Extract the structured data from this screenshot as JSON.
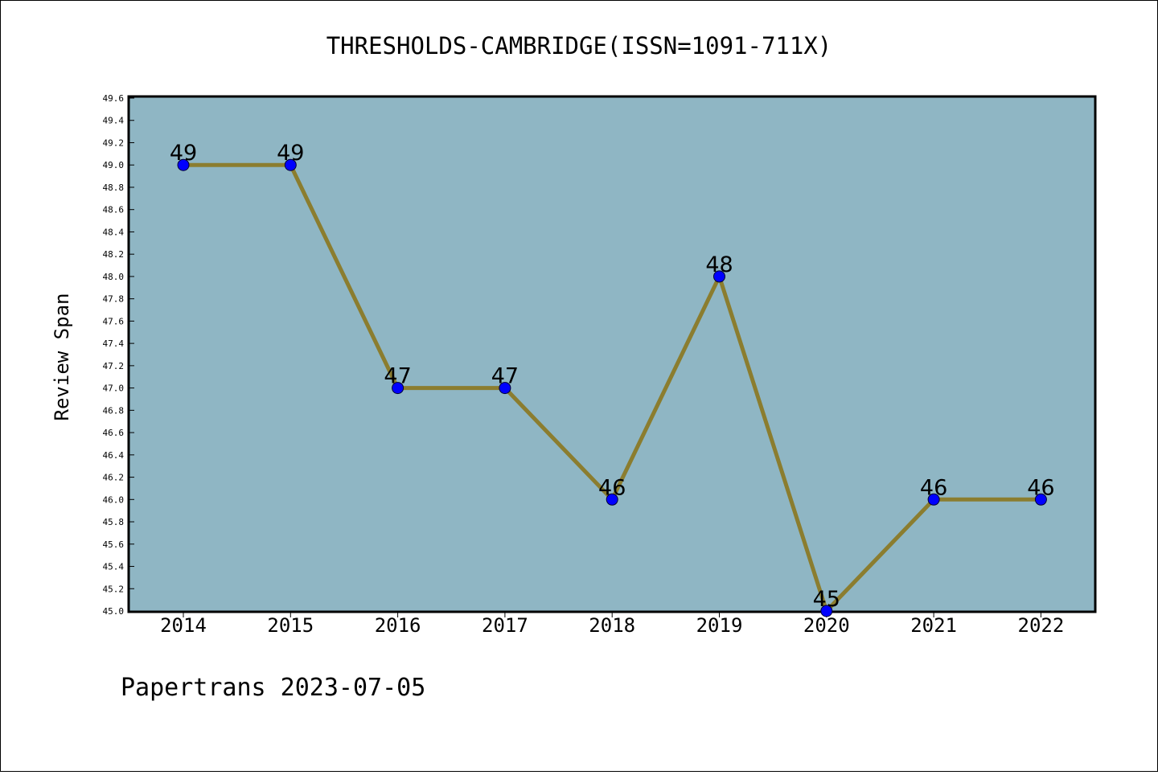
{
  "chart_data": {
    "type": "line",
    "title": "THRESHOLDS-CAMBRIDGE(ISSN=1091-711X)",
    "xlabel": "",
    "ylabel": "Review Span",
    "categories": [
      "2014",
      "2015",
      "2016",
      "2017",
      "2018",
      "2019",
      "2020",
      "2021",
      "2022"
    ],
    "values": [
      49,
      49,
      47,
      47,
      46,
      48,
      45,
      46,
      46
    ],
    "data_labels": [
      "49",
      "49",
      "47",
      "47",
      "46",
      "48",
      "45",
      "46",
      "46"
    ],
    "ylim": [
      45.0,
      49.6
    ],
    "y_ticks": [
      "45.0",
      "45.2",
      "45.4",
      "45.6",
      "45.8",
      "46.0",
      "46.2",
      "46.4",
      "46.6",
      "46.8",
      "47.0",
      "47.2",
      "47.4",
      "47.6",
      "47.8",
      "48.0",
      "48.2",
      "48.4",
      "48.6",
      "48.8",
      "49.0",
      "49.2",
      "49.4",
      "49.6"
    ],
    "grid": false,
    "legend": "none",
    "colors": {
      "plot_background": "#8fb6c4",
      "line": "#8b7d2f",
      "marker": "#0000ff"
    }
  },
  "footer": {
    "text": "Papertrans 2023-07-05"
  }
}
